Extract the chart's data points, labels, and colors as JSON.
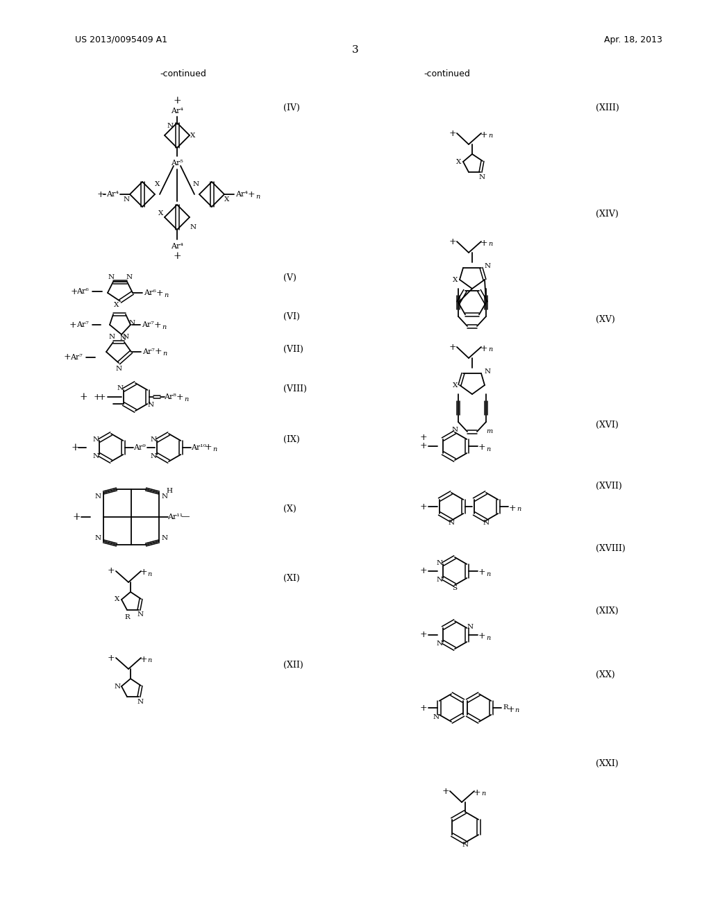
{
  "bg_color": "#ffffff",
  "header_left": "US 2013/0095409 A1",
  "header_right": "Apr. 18, 2013",
  "page_number": "3",
  "left_continued": "-continued",
  "right_continued": "-continued",
  "fig_width": 10.24,
  "fig_height": 13.2
}
